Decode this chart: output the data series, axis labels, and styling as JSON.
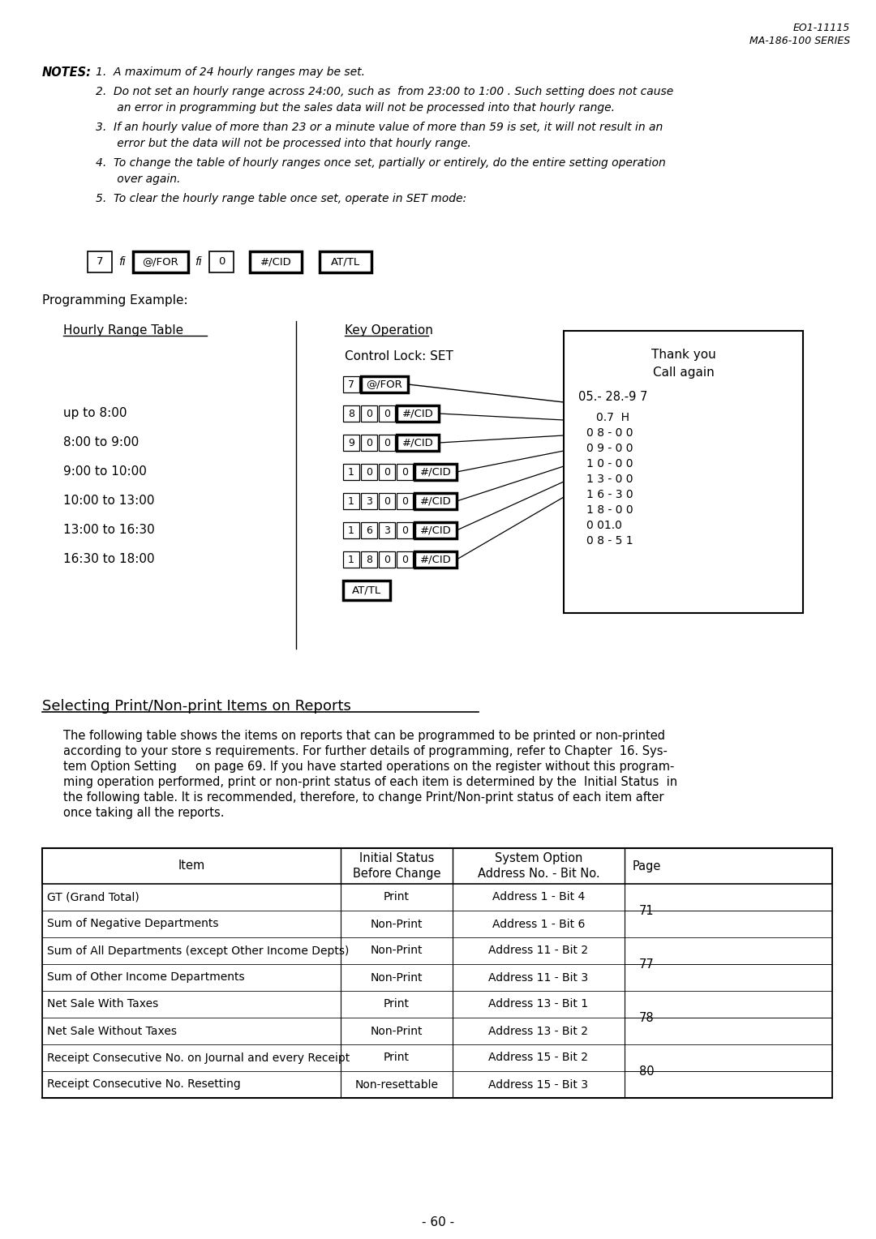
{
  "header_right_line1": "EO1-11115",
  "header_right_line2": "MA-186-100 SERIES",
  "note_texts": [
    "1.  A maximum of 24 hourly ranges may be set.",
    "2.  Do not set an hourly range across 24:00, such as  from 23:00 to 1:00 . Such setting does not cause\n      an error in programming but the sales data will not be processed into that hourly range.",
    "3.  If an hourly value of more than 23 or a minute value of more than 59 is set, it will not result in an\n      error but the data will not be processed into that hourly range.",
    "4.  To change the table of hourly ranges once set, partially or entirely, do the entire setting operation\n      over again.",
    "5.  To clear the hourly range table once set, operate in SET mode:"
  ],
  "prog_example_label": "Programming Example:",
  "hourly_range_header": "Hourly Range Table",
  "key_op_header": "Key Operation",
  "control_lock": "Control Lock: SET",
  "hourly_ranges": [
    "up to 8:00",
    "8:00 to 9:00",
    "9:00 to 10:00",
    "10:00 to 13:00",
    "13:00 to 16:30",
    "16:30 to 18:00"
  ],
  "key_ops_digits": [
    [
      "8",
      "0",
      "0"
    ],
    [
      "9",
      "0",
      "0"
    ],
    [
      "1",
      "0",
      "0",
      "0"
    ],
    [
      "1",
      "3",
      "0",
      "0"
    ],
    [
      "1",
      "6",
      "3",
      "0"
    ],
    [
      "1",
      "8",
      "0",
      "0"
    ]
  ],
  "receipt_lines_center": [
    "Thank you",
    "Call again"
  ],
  "receipt_date": "05.- 28.-9 7",
  "receipt_data": [
    "0.7  H",
    "0 8 - 0 0",
    "0 9 - 0 0",
    "1 0 - 0 0",
    "1 3 - 0 0",
    "1 6 - 3 0",
    "1 8 - 0 0",
    "0 01.0",
    "0 8 - 5 1"
  ],
  "section_title": "Selecting Print/Non-print Items on Reports",
  "section_body_lines": [
    "The following table shows the items on reports that can be programmed to be printed or non-printed",
    "according to your store s requirements. For further details of programming, refer to Chapter  16. Sys-",
    "tem Option Setting     on page 69. If you have started operations on the register without this program-",
    "ming operation performed, print or non-print status of each item is determined by the  Initial Status  in",
    "the following table. It is recommended, therefore, to change Print/Non-print status of each item after",
    "once taking all the reports."
  ],
  "table_rows": [
    [
      "GT (Grand Total)",
      "Print",
      "Address 1 - Bit 4",
      "71"
    ],
    [
      "Sum of Negative Departments",
      "Non-Print",
      "Address 1 - Bit 6",
      "71"
    ],
    [
      "Sum of All Departments (except Other Income Depts)",
      "Non-Print",
      "Address 11 - Bit 2",
      "77"
    ],
    [
      "Sum of Other Income Departments",
      "Non-Print",
      "Address 11 - Bit 3",
      "77"
    ],
    [
      "Net Sale With Taxes",
      "Print",
      "Address 13 - Bit 1",
      "78"
    ],
    [
      "Net Sale Without Taxes",
      "Non-Print",
      "Address 13 - Bit 2",
      "78"
    ],
    [
      "Receipt Consecutive No. on Journal and every Receipt",
      "Print",
      "Address 15 - Bit 2",
      "80"
    ],
    [
      "Receipt Consecutive No. Resetting",
      "Non-resettable",
      "Address 15 - Bit 3",
      "80"
    ]
  ],
  "page_number": "- 60 -",
  "bg_color": "#ffffff"
}
